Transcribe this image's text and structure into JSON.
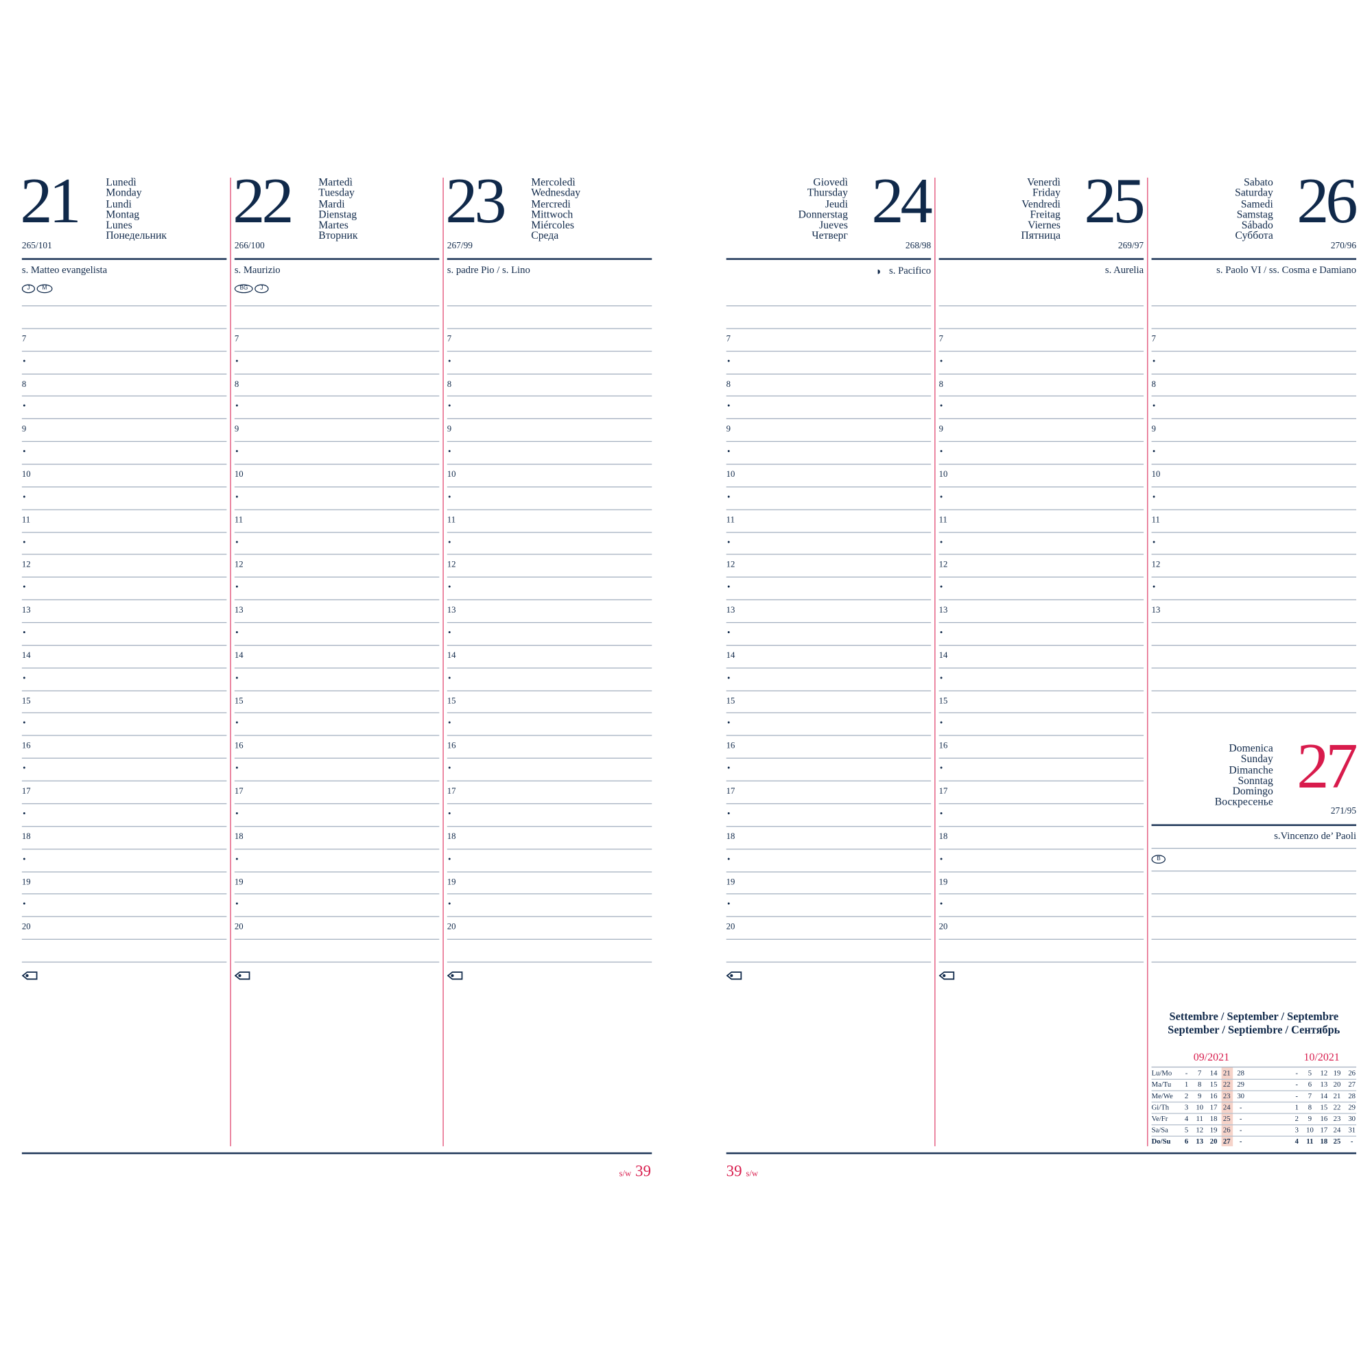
{
  "colors": {
    "navy": "#10294a",
    "accent_red": "#d81b4c",
    "rule_grey": "#a3afbf",
    "highlight": "#f6d3c9"
  },
  "week_label": "s/w",
  "week_number": "39",
  "hours": [
    "7",
    "8",
    "9",
    "10",
    "11",
    "12",
    "13",
    "14",
    "15",
    "16",
    "17",
    "18",
    "19",
    "20"
  ],
  "bullet": "•",
  "days": [
    {
      "number": "21",
      "names": [
        "Lunedì",
        "Monday",
        "Lundi",
        "Montag",
        "Lunes",
        "Понедельник"
      ],
      "code": "265/101",
      "saint": "s. Matteo evangelista",
      "badges": [
        "J",
        "M"
      ],
      "icon": "tag-icon"
    },
    {
      "number": "22",
      "names": [
        "Martedì",
        "Tuesday",
        "Mardi",
        "Dienstag",
        "Martes",
        "Вторник"
      ],
      "code": "266/100",
      "saint": "s. Maurizio",
      "badges": [
        "BG",
        "J"
      ],
      "icon": "tag-icon"
    },
    {
      "number": "23",
      "names": [
        "Mercoledì",
        "Wednesday",
        "Mercredi",
        "Mittwoch",
        "Miércoles",
        "Среда"
      ],
      "code": "267/99",
      "saint": "s. padre Pio / s. Lino",
      "badges": [],
      "icon": "tag-icon"
    },
    {
      "number": "24",
      "names": [
        "Giovedì",
        "Thursday",
        "Jeudi",
        "Donnerstag",
        "Jueves",
        "Четверг"
      ],
      "code": "268/98",
      "saint": "s. Pacifico",
      "moon": "last-quarter-moon-icon",
      "badges": [],
      "icon": "tag-icon"
    },
    {
      "number": "25",
      "names": [
        "Venerdì",
        "Friday",
        "Vendredi",
        "Freitag",
        "Viernes",
        "Пятница"
      ],
      "code": "269/97",
      "saint": "s. Aurelia",
      "badges": [],
      "icon": "tag-icon"
    },
    {
      "number": "26",
      "names": [
        "Sabato",
        "Saturday",
        "Samedi",
        "Samstag",
        "Sábado",
        "Суббота"
      ],
      "code": "270/96",
      "saint": "s. Paolo VI / ss. Cosma e Damiano",
      "badges": []
    }
  ],
  "sunday": {
    "number": "27",
    "names": [
      "Domenica",
      "Sunday",
      "Dimanche",
      "Sonntag",
      "Domingo",
      "Воскресенье"
    ],
    "code": "271/95",
    "saint": "s.Vincenzo de’ Paoli",
    "badges": [
      "B"
    ]
  },
  "month_overview": {
    "title_lines": [
      "Settembre / September / Septembre",
      "September / Septiembre / Сентябрь"
    ],
    "months": [
      {
        "label": "09/2021",
        "rows": [
          [
            "-",
            "7",
            "14",
            "21",
            "28"
          ],
          [
            "1",
            "8",
            "15",
            "22",
            "29"
          ],
          [
            "2",
            "9",
            "16",
            "23",
            "30"
          ],
          [
            "3",
            "10",
            "17",
            "24",
            "-"
          ],
          [
            "4",
            "11",
            "18",
            "25",
            "-"
          ],
          [
            "5",
            "12",
            "19",
            "26",
            "-"
          ],
          [
            "6",
            "13",
            "20",
            "27",
            "-"
          ]
        ]
      },
      {
        "label": "10/2021",
        "rows": [
          [
            "-",
            "5",
            "12",
            "19",
            "26"
          ],
          [
            "-",
            "6",
            "13",
            "20",
            "27"
          ],
          [
            "-",
            "7",
            "14",
            "21",
            "28"
          ],
          [
            "1",
            "8",
            "15",
            "22",
            "29"
          ],
          [
            "2",
            "9",
            "16",
            "23",
            "30"
          ],
          [
            "3",
            "10",
            "17",
            "24",
            "31"
          ],
          [
            "4",
            "11",
            "18",
            "25",
            "-"
          ]
        ]
      }
    ],
    "weekday_labels": [
      "Lu/Mo",
      "Ma/Tu",
      "Me/We",
      "Gi/Th",
      "Ve/Fr",
      "Sa/Sa",
      "Do/Su"
    ],
    "current_week_column": 3
  }
}
